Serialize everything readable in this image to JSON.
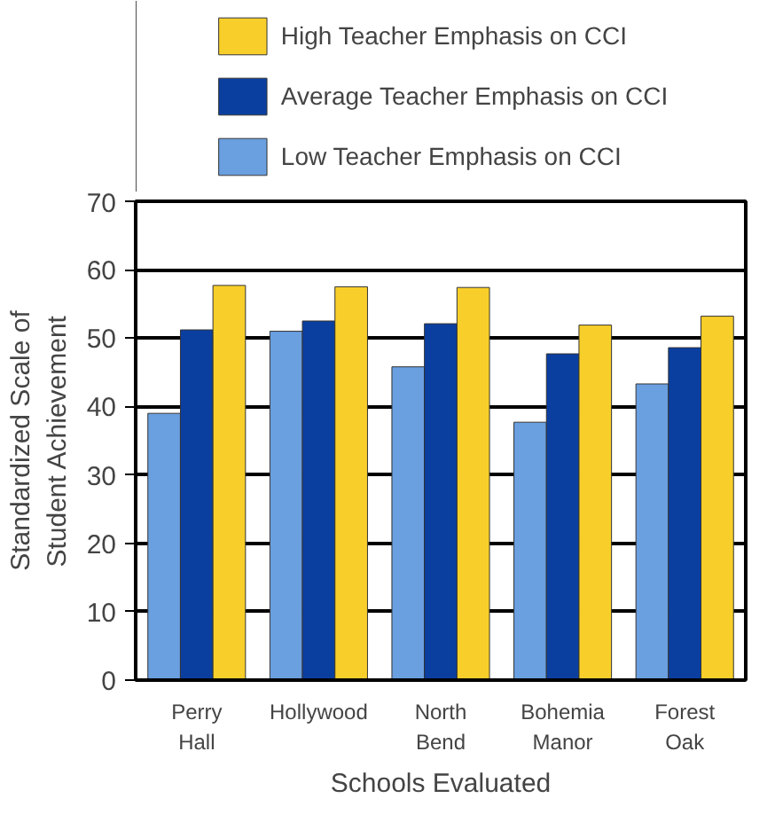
{
  "chart_data": {
    "type": "bar",
    "xlabel": "Schools Evaluated",
    "ylabel": "Standardized Scale of\nStudent Achievement",
    "categories": [
      "Perry\nHall",
      "Hollywood",
      "North\nBend",
      "Bohemia\nManor",
      "Forest\nOak"
    ],
    "series": [
      {
        "name": "Low Teacher Emphasis on CCI",
        "color": "#6a9fe0",
        "values": [
          39,
          51,
          45.8,
          37.7,
          43.3
        ]
      },
      {
        "name": "Average Teacher Emphasis on CCI",
        "color": "#0a3fa0",
        "values": [
          51.2,
          52.5,
          52.1,
          47.7,
          48.6
        ]
      },
      {
        "name": "High Teacher Emphasis on CCI",
        "color": "#f8cf2a",
        "values": [
          57.7,
          57.5,
          57.4,
          51.9,
          53.2
        ]
      }
    ],
    "ylim": [
      0,
      70
    ],
    "yticks": [
      0,
      10,
      20,
      30,
      40,
      50,
      60,
      70
    ],
    "grid": "y",
    "legend": "top"
  }
}
